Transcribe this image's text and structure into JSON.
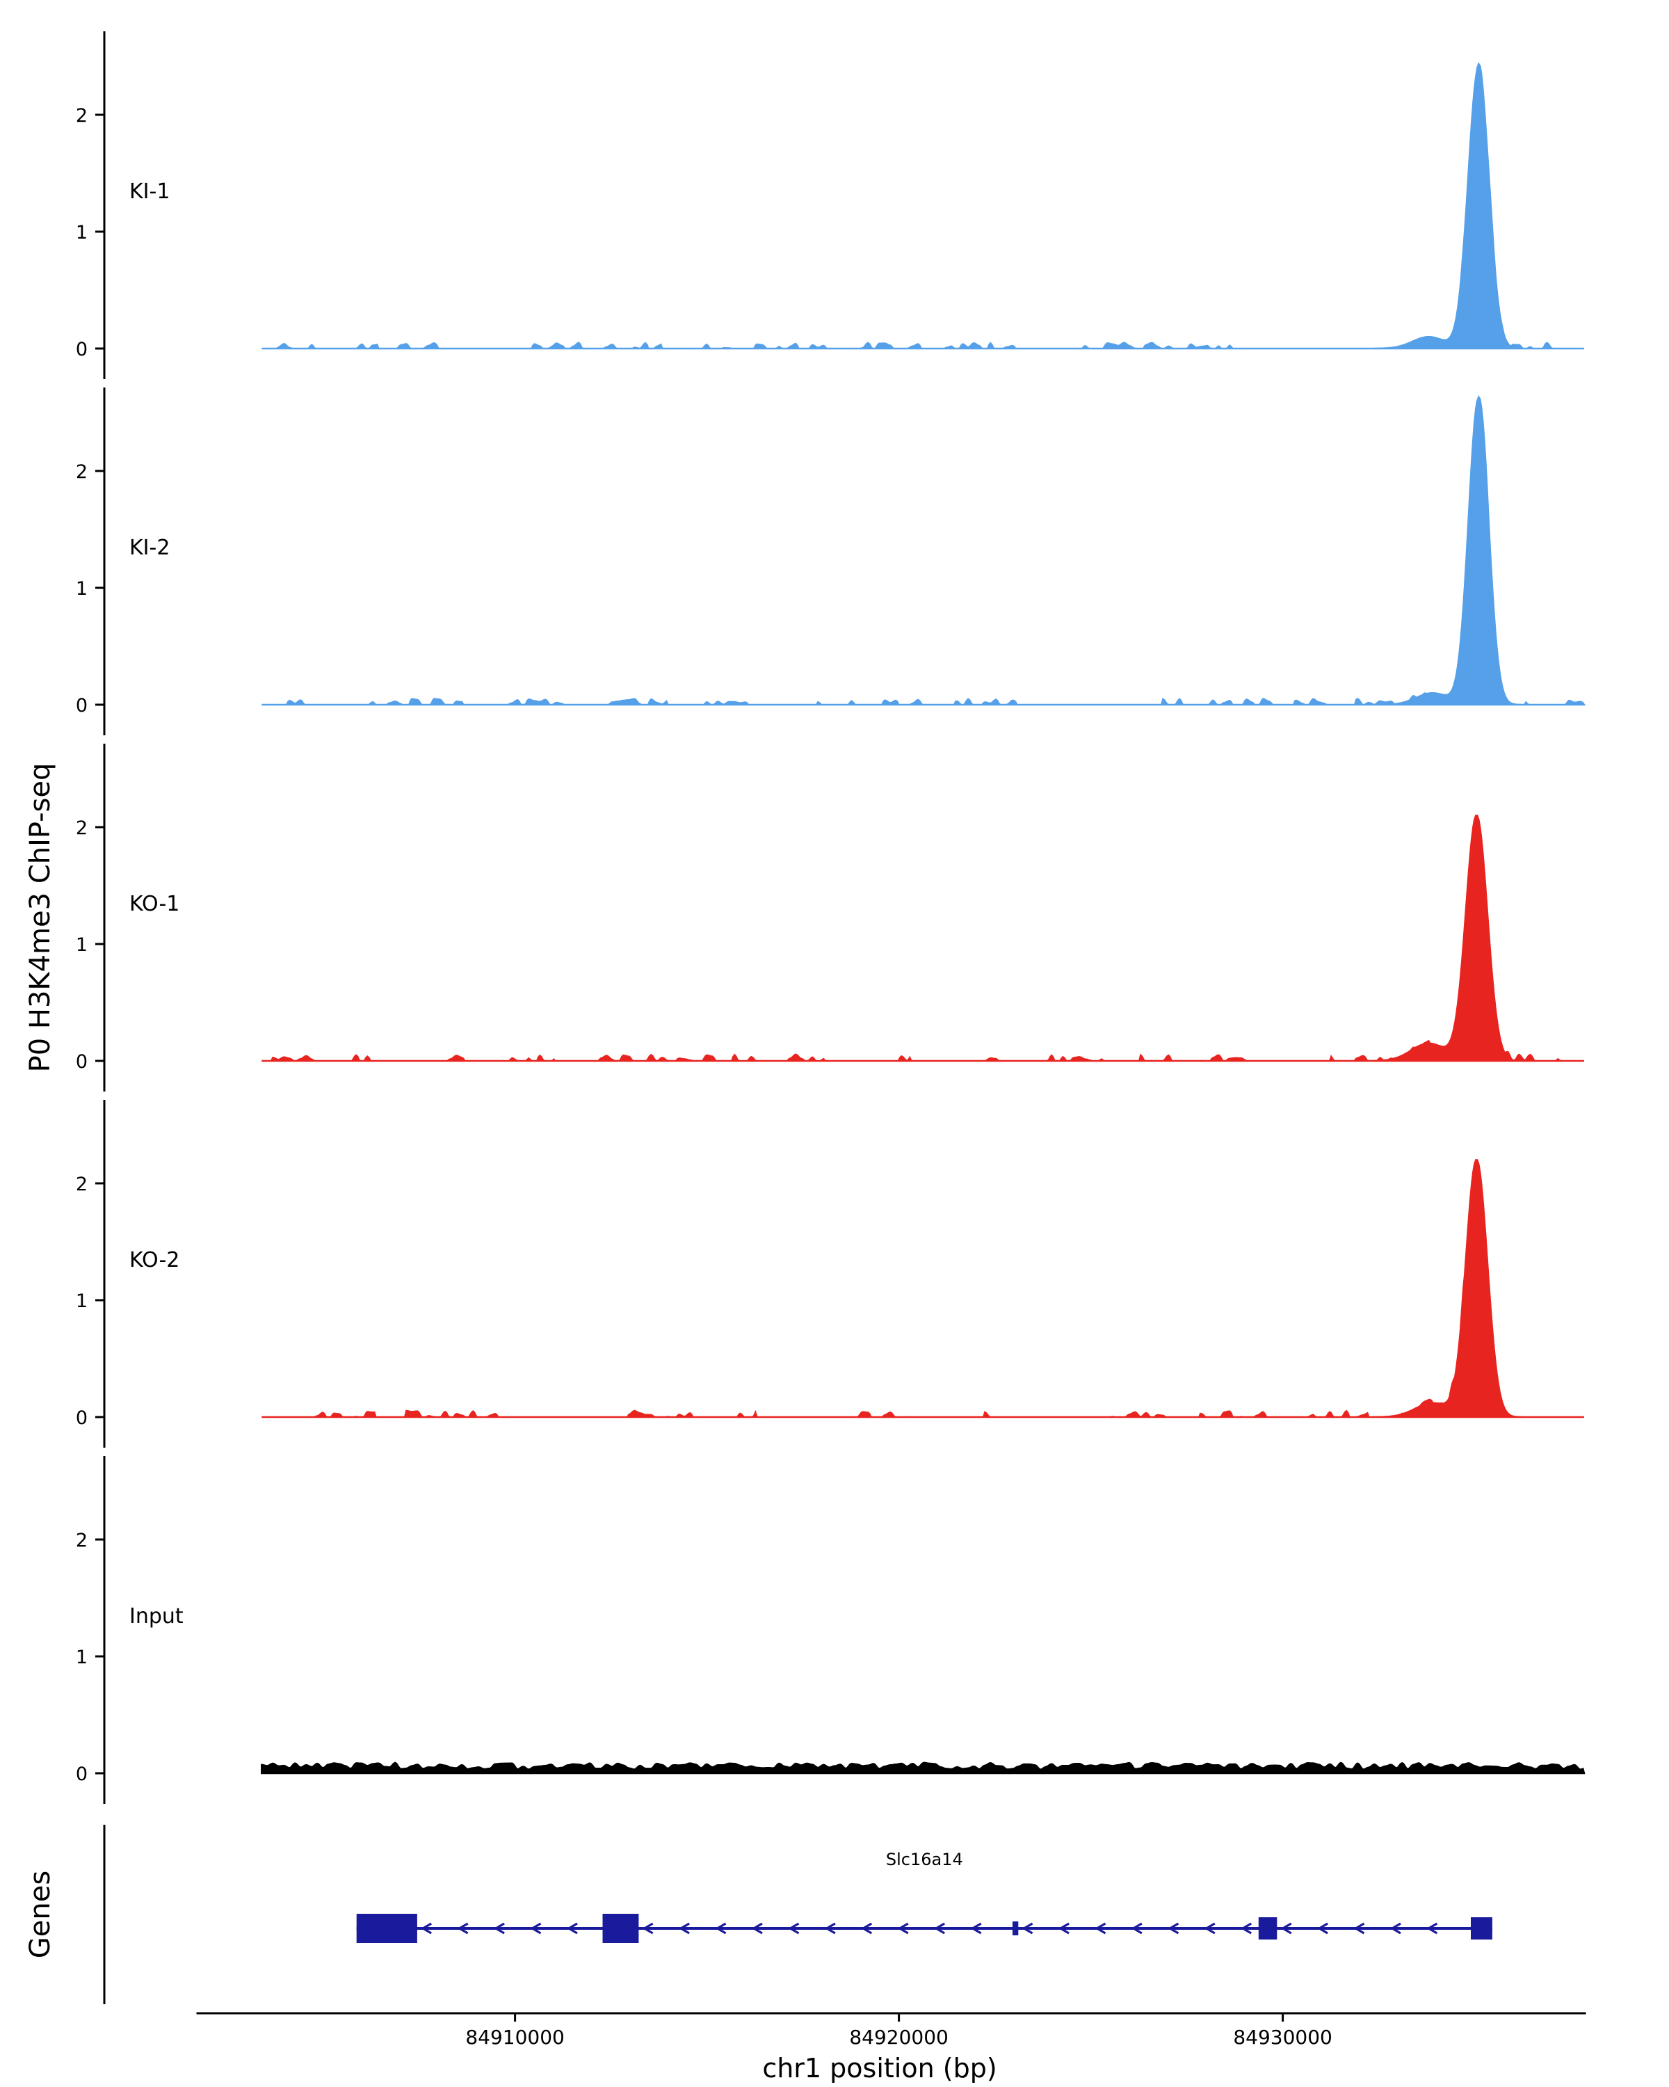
{
  "chart_data": {
    "type": "area",
    "title": "",
    "xlabel": "chr1 position (bp)",
    "group_ylabel": "P0 H3K4me3 ChIP-seq",
    "x_axis_bp": {
      "view_min": 84899300,
      "view_max": 84939700,
      "data_min": 84903400,
      "data_max": 84937850,
      "axis_line_min": 84901700,
      "axis_line_max": 84937900,
      "ticks": [
        84910000,
        84920000,
        84930000
      ]
    },
    "y_axis": {
      "ticks": [
        0,
        1,
        2
      ],
      "ylim": [
        0,
        2.7
      ]
    },
    "tracks": [
      {
        "name": "KI-1",
        "color": "#55a0e8",
        "noise_amp": 0.05,
        "peaks": [
          {
            "center_bp": 84935100,
            "height": 2.4,
            "sigma_bp": 270
          },
          {
            "center_bp": 84933800,
            "height": 0.1,
            "sigma_bp": 420
          }
        ]
      },
      {
        "name": "KI-2",
        "color": "#55a0e8",
        "noise_amp": 0.05,
        "peaks": [
          {
            "center_bp": 84935100,
            "height": 2.62,
            "sigma_bp": 260
          },
          {
            "center_bp": 84933900,
            "height": 0.1,
            "sigma_bp": 420
          }
        ]
      },
      {
        "name": "KO-1",
        "color": "#e82420",
        "noise_amp": 0.055,
        "peaks": [
          {
            "center_bp": 84935050,
            "height": 2.1,
            "sigma_bp": 280
          },
          {
            "center_bp": 84933800,
            "height": 0.15,
            "sigma_bp": 450
          }
        ]
      },
      {
        "name": "KO-2",
        "color": "#e82420",
        "noise_amp": 0.055,
        "peaks": [
          {
            "center_bp": 84935050,
            "height": 2.2,
            "sigma_bp": 280
          },
          {
            "center_bp": 84933900,
            "height": 0.12,
            "sigma_bp": 450
          }
        ]
      },
      {
        "name": "Input",
        "color": "#000000",
        "noise_amp": 0.09,
        "continuous_noise": true,
        "peaks": []
      }
    ],
    "gene_track": {
      "ylabel": "Genes",
      "genes": [
        {
          "name": "Slc16a14",
          "strand": "-",
          "start_bp": 84905870,
          "end_bp": 84935460,
          "color": "#1a1a9c",
          "exons": [
            {
              "start_bp": 84905870,
              "end_bp": 84907450,
              "height": "large"
            },
            {
              "start_bp": 84912280,
              "end_bp": 84913220,
              "height": "large"
            },
            {
              "start_bp": 84922960,
              "end_bp": 84923110,
              "height": "small"
            },
            {
              "start_bp": 84929370,
              "end_bp": 84929850,
              "height": "medium"
            },
            {
              "start_bp": 84934900,
              "end_bp": 84935460,
              "height": "medium"
            }
          ]
        }
      ]
    }
  }
}
